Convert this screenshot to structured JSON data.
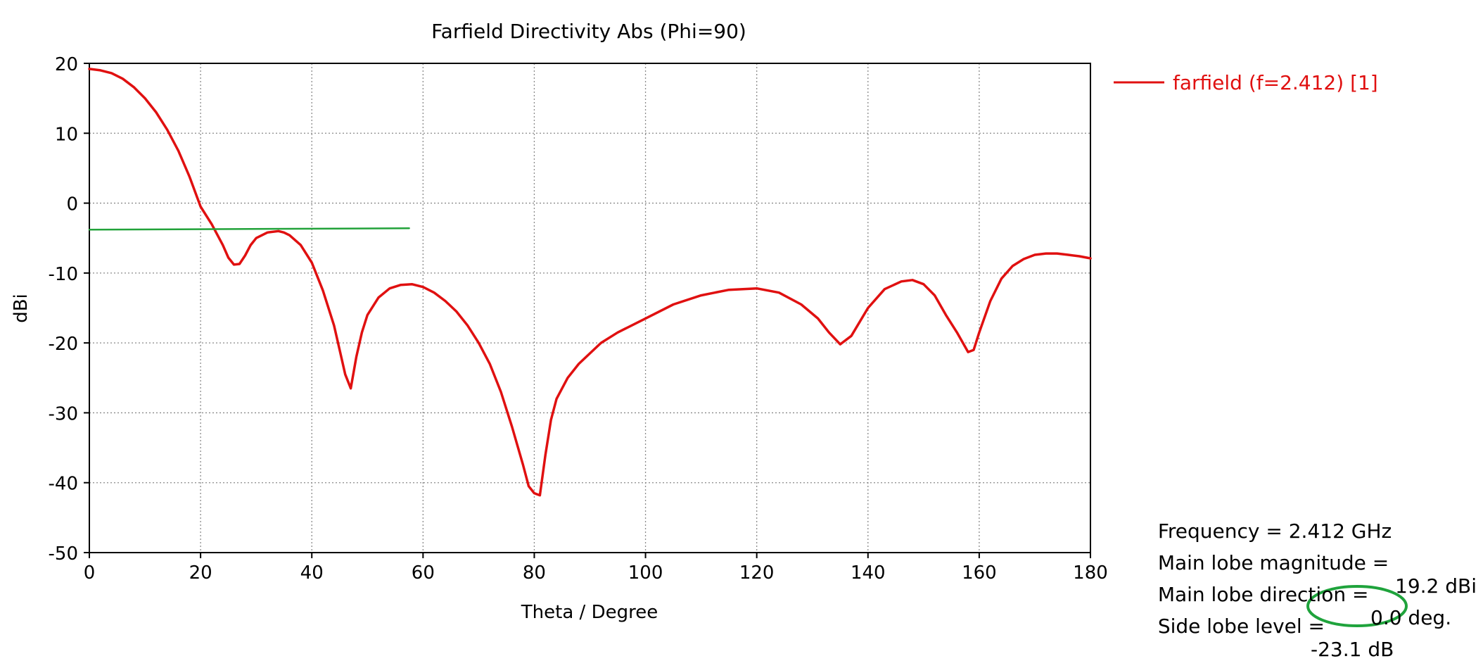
{
  "chart_data": {
    "type": "line",
    "title": "Farfield Directivity Abs (Phi=90)",
    "xlabel": "Theta / Degree",
    "ylabel": "dBi",
    "xlim": [
      0,
      180
    ],
    "ylim": [
      -50,
      20
    ],
    "xticks": [
      0,
      20,
      40,
      60,
      80,
      100,
      120,
      140,
      160,
      180
    ],
    "yticks": [
      20,
      10,
      0,
      -10,
      -20,
      -30,
      -40,
      -50
    ],
    "grid": true,
    "legend_position": "top-right, outside plot",
    "series": [
      {
        "name": "farfield (f=2.412) [1]",
        "color": "#e01010",
        "x": [
          0,
          2,
          4,
          6,
          8,
          10,
          12,
          14,
          16,
          18,
          20,
          22,
          24,
          25,
          26,
          27,
          28,
          29,
          30,
          32,
          34,
          35,
          36,
          38,
          40,
          42,
          44,
          45,
          46,
          47,
          48,
          49,
          50,
          52,
          54,
          56,
          58,
          60,
          62,
          64,
          66,
          68,
          70,
          72,
          74,
          76,
          78,
          79,
          80,
          81,
          82,
          83,
          84,
          86,
          88,
          90,
          92,
          95,
          100,
          105,
          110,
          115,
          120,
          124,
          128,
          131,
          133,
          135,
          137,
          140,
          143,
          146,
          148,
          150,
          152,
          154,
          156,
          158,
          159,
          160,
          162,
          164,
          166,
          168,
          170,
          172,
          174,
          176,
          178,
          180
        ],
        "values": [
          19.2,
          19.0,
          18.6,
          17.8,
          16.6,
          15.0,
          13.0,
          10.5,
          7.5,
          3.8,
          -0.5,
          -3.0,
          -6.0,
          -7.8,
          -8.8,
          -8.7,
          -7.5,
          -6.0,
          -5.0,
          -4.2,
          -4.0,
          -4.2,
          -4.6,
          -6.0,
          -8.5,
          -12.5,
          -17.5,
          -21.0,
          -24.5,
          -26.5,
          -22.0,
          -18.5,
          -16.0,
          -13.5,
          -12.2,
          -11.7,
          -11.6,
          -12.0,
          -12.8,
          -14.0,
          -15.5,
          -17.5,
          -20.0,
          -23.0,
          -27.0,
          -32.0,
          -37.5,
          -40.5,
          -41.5,
          -41.8,
          -36.0,
          -31.0,
          -28.0,
          -25.0,
          -23.0,
          -21.5,
          -20.0,
          -18.5,
          -16.5,
          -14.5,
          -13.2,
          -12.4,
          -12.2,
          -12.8,
          -14.5,
          -16.5,
          -18.5,
          -20.2,
          -19.0,
          -15.0,
          -12.3,
          -11.2,
          -11.0,
          -11.6,
          -13.2,
          -16.0,
          -18.5,
          -21.3,
          -21.0,
          -18.5,
          -14.0,
          -10.8,
          -9.0,
          -8.0,
          -7.4,
          -7.2,
          -7.2,
          -7.4,
          -7.6,
          -7.9
        ]
      },
      {
        "name": "",
        "color": "#22a23a",
        "x": [
          0,
          57.5
        ],
        "values": [
          -3.8,
          -3.6
        ]
      }
    ]
  },
  "info": {
    "frequency": {
      "label": "Frequency = 2.412 GHz",
      "value": ""
    },
    "main_lobe_magnitude": {
      "label": "Main lobe magnitude =",
      "value": "19.2 dBi"
    },
    "main_lobe_direction": {
      "label": "Main lobe direction =",
      "value": "0.0 deg."
    },
    "side_lobe_level": {
      "label": "Side lobe level =",
      "value": "-23.1 dB"
    }
  },
  "colors": {
    "highlight_ellipse": "#1fa33c",
    "grid": "#8a8a8a",
    "axes": "#000000"
  }
}
